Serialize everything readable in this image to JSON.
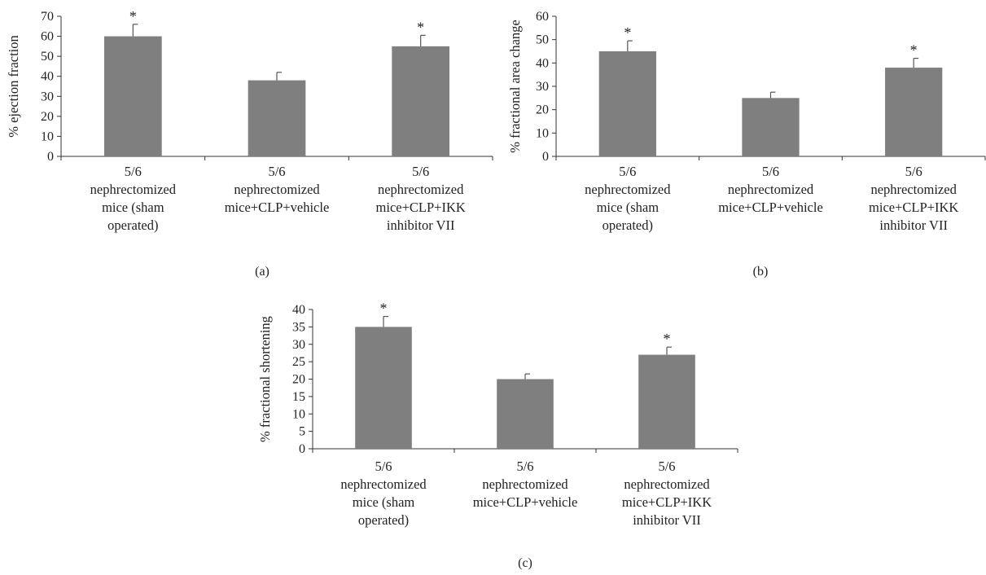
{
  "chart_data": [
    {
      "type": "bar",
      "panel_label": "(a)",
      "ylabel": "% ejection fraction",
      "ylim": [
        0,
        70
      ],
      "yticks": [
        0,
        10,
        20,
        30,
        40,
        50,
        60,
        70
      ],
      "categories": [
        [
          "5/6",
          "nephrectomized",
          "mice (sham",
          "operated)"
        ],
        [
          "5/6",
          "nephrectomized",
          "mice+CLP+vehicle"
        ],
        [
          "5/6",
          "nephrectomized",
          "mice+CLP+IKK",
          "inhibitor VII"
        ]
      ],
      "values": [
        60,
        38,
        55
      ],
      "errors": [
        6,
        4,
        5.5
      ],
      "annotations": [
        "*",
        "",
        "*"
      ],
      "color": "#7f7f7f"
    },
    {
      "type": "bar",
      "panel_label": "(b)",
      "ylabel": "% fractional area change",
      "ylim": [
        0,
        60
      ],
      "yticks": [
        0,
        10,
        20,
        30,
        40,
        50,
        60
      ],
      "categories": [
        [
          "5/6",
          "nephrectomized",
          "mice (sham",
          "operated)"
        ],
        [
          "5/6",
          "nephrectomized",
          "mice+CLP+vehicle"
        ],
        [
          "5/6",
          "nephrectomized",
          "mice+CLP+IKK",
          "inhibitor VII"
        ]
      ],
      "values": [
        45,
        25,
        38
      ],
      "errors": [
        4.5,
        2.5,
        4
      ],
      "annotations": [
        "*",
        "",
        "*"
      ],
      "color": "#7f7f7f"
    },
    {
      "type": "bar",
      "panel_label": "(c)",
      "ylabel": "% fractional shortening",
      "ylim": [
        0,
        40
      ],
      "yticks": [
        0,
        5,
        10,
        15,
        20,
        25,
        30,
        35,
        40
      ],
      "categories": [
        [
          "5/6",
          "nephrectomized",
          "mice (sham",
          "operated)"
        ],
        [
          "5/6",
          "nephrectomized",
          "mice+CLP+vehicle"
        ],
        [
          "5/6",
          "nephrectomized",
          "mice+CLP+IKK",
          "inhibitor VII"
        ]
      ],
      "values": [
        35,
        20,
        27
      ],
      "errors": [
        3,
        1.5,
        2.2
      ],
      "annotations": [
        "*",
        "",
        "*"
      ],
      "color": "#7f7f7f"
    }
  ]
}
